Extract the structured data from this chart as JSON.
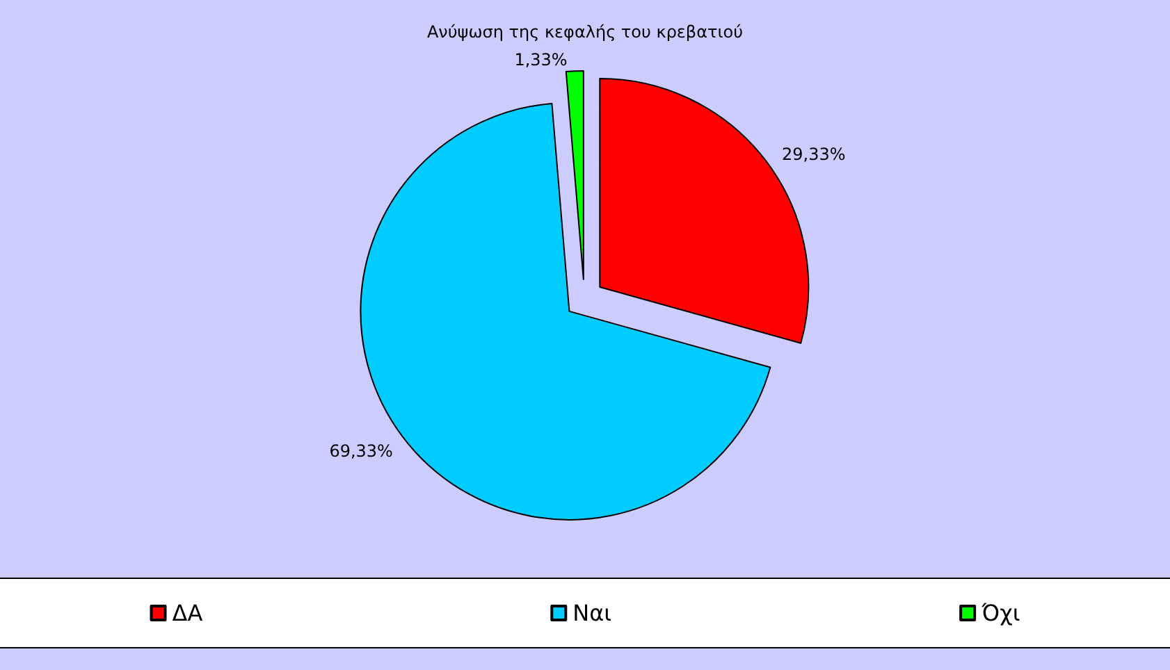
{
  "chart_data": {
    "type": "pie",
    "title": "Ανύψωση της κεφαλής του κρεβατιού",
    "categories": [
      "ΔΑ",
      "Ναι",
      "Όχι"
    ],
    "values": [
      29.33,
      69.33,
      1.33
    ],
    "colors": [
      "#ff0000",
      "#00ccff",
      "#00ff00"
    ],
    "value_labels": [
      "29,33%",
      "69,33%",
      "1,33%"
    ],
    "legend": "bottom"
  }
}
